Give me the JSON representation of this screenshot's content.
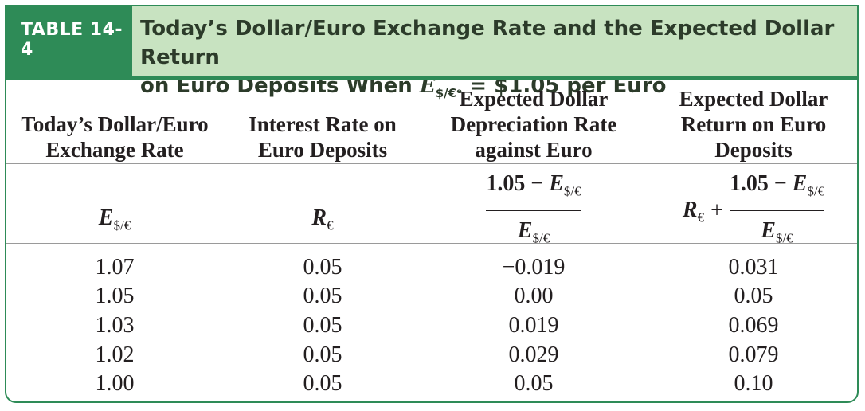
{
  "header": {
    "tag": "TABLE 14-4",
    "title_line1": "Today’s Dollar/Euro Exchange Rate and the Expected Dollar Return",
    "title_line2_prefix": "on Euro Deposits When",
    "title_symbol": "E",
    "title_subscript": "$/€ᵉ",
    "title_line2_suffix": "= $1.05 per Euro"
  },
  "columns": [
    {
      "line1": "",
      "line2": "Today’s Dollar/Euro",
      "line3": "Exchange Rate"
    },
    {
      "line1": "",
      "line2": "Interest Rate on",
      "line3": "Euro Deposits"
    },
    {
      "line1": "Expected Dollar",
      "line2": "Depreciation Rate",
      "line3": "against Euro"
    },
    {
      "line1": "Expected Dollar",
      "line2": "Return on Euro",
      "line3": "Deposits"
    }
  ],
  "formulas": {
    "col1_symbol": "E",
    "col1_sub": "$/€",
    "col2_symbol": "R",
    "col2_sub": "€",
    "col3_num_const": "1.05",
    "col3_minus": "−",
    "col3_num_symbol": "E",
    "col3_num_sub": "$/€",
    "col3_den_symbol": "E",
    "col3_den_sub": "$/€",
    "col4_symbol": "R",
    "col4_sub": "€",
    "col4_plus": "+",
    "col4_num_const": "1.05",
    "col4_minus": "−",
    "col4_num_symbol": "E",
    "col4_num_sub": "$/€",
    "col4_den_symbol": "E",
    "col4_den_sub": "$/€"
  },
  "rows": [
    [
      "1.07",
      "0.05",
      "−0.019",
      "0.031"
    ],
    [
      "1.05",
      "0.05",
      "0.00",
      "0.05"
    ],
    [
      "1.03",
      "0.05",
      "0.019",
      "0.069"
    ],
    [
      "1.02",
      "0.05",
      "0.029",
      "0.079"
    ],
    [
      "1.00",
      "0.05",
      "0.05",
      "0.10"
    ]
  ]
}
